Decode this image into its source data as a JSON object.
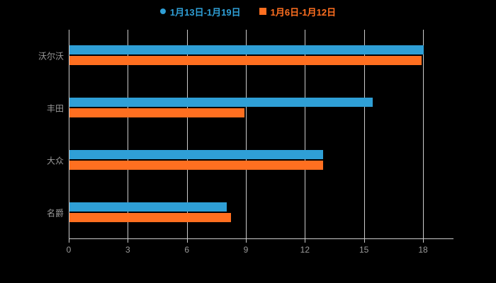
{
  "chart_data": {
    "type": "bar",
    "orientation": "horizontal",
    "title": "",
    "xlabel": "",
    "ylabel": "",
    "categories": [
      "沃尔沃",
      "丰田",
      "大众",
      "名爵"
    ],
    "series": [
      {
        "name": "1月13日-1月19日",
        "color": "#2f9fd6",
        "marker": "circle",
        "values": [
          18,
          15.4,
          12.9,
          8.0
        ]
      },
      {
        "name": "1月6日-1月12日",
        "color": "#ff6f20",
        "marker": "square",
        "values": [
          17.9,
          8.9,
          12.9,
          8.2
        ]
      }
    ],
    "xlim": [
      0,
      18
    ],
    "xticks": [
      0,
      3,
      6,
      9,
      12,
      15,
      18
    ],
    "grid": true,
    "legend_position": "top",
    "background_color": "#000000",
    "axis_color": "#cccccc",
    "label_color": "#9a9a9a"
  }
}
